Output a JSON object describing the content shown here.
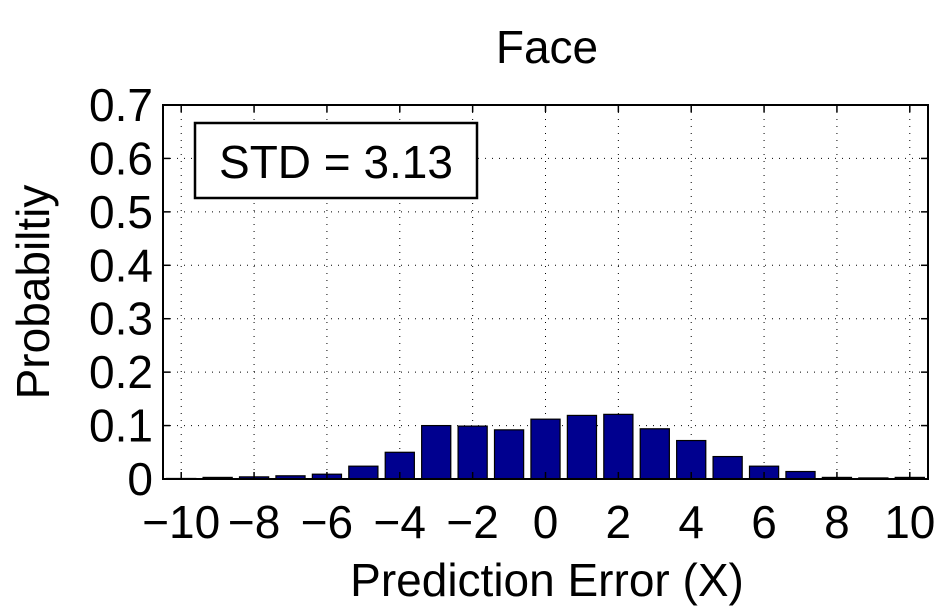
{
  "chart_data": {
    "type": "bar",
    "title": "Face",
    "xlabel": "Prediction Error (X)",
    "ylabel": "Probabiltiy",
    "annotation": "STD = 3.13",
    "xlim": [
      -10.5,
      10.5
    ],
    "ylim": [
      0,
      0.7
    ],
    "grid": true,
    "x_ticks": [
      -10,
      -8,
      -6,
      -4,
      -2,
      0,
      2,
      4,
      6,
      8,
      10
    ],
    "x_tick_labels": [
      "−10",
      "−8",
      "−6",
      "−4",
      "−2",
      "0",
      "2",
      "4",
      "6",
      "8",
      "10"
    ],
    "y_ticks": [
      0,
      0.1,
      0.2,
      0.3,
      0.4,
      0.5,
      0.6,
      0.7
    ],
    "y_tick_labels": [
      "0",
      "0.1",
      "0.2",
      "0.3",
      "0.4",
      "0.5",
      "0.6",
      "0.7"
    ],
    "x": [
      -10,
      -9,
      -8,
      -7,
      -6,
      -5,
      -4,
      -3,
      -2,
      -1,
      0,
      1,
      2,
      3,
      4,
      5,
      6,
      7,
      8,
      9,
      10
    ],
    "values": [
      0.001,
      0.003,
      0.004,
      0.006,
      0.009,
      0.024,
      0.05,
      0.1,
      0.099,
      0.092,
      0.112,
      0.119,
      0.121,
      0.094,
      0.072,
      0.042,
      0.024,
      0.014,
      0.003,
      0.002,
      0.003
    ],
    "bar_color": "#00008f"
  }
}
